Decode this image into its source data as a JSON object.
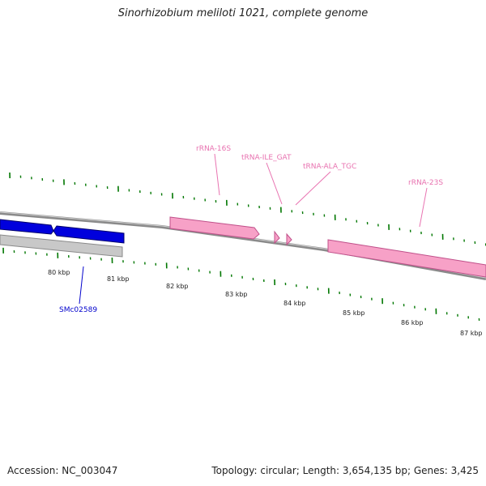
{
  "title": "Sinorhizobium meliloti 1021, complete genome",
  "footer": {
    "accession": "Accession: NC_003047",
    "summary": "Topology: circular; Length: 3,654,135 bp; Genes: 3,425"
  },
  "colors": {
    "cds": "#0000dd",
    "cds_outline": "#00006a",
    "rna": "#f7a1c7",
    "rna_outline": "#c0508a",
    "backbone": "#8a8a8a",
    "ticks": "#007700",
    "gene_label": "#0000cc",
    "rna_label": "#e872b0"
  },
  "scale_labels": [
    "80 kbp",
    "81 kbp",
    "82 kbp",
    "83 kbp",
    "84 kbp",
    "85 kbp",
    "86 kbp",
    "87 kbp"
  ],
  "labels": {
    "gene": "SMc02589",
    "rrna16s": "rRNA-16S",
    "trna_ile": "tRNA-ILE_GAT",
    "trna_ala": "tRNA-ALA_TGC",
    "rrna23s": "rRNA-23S"
  }
}
